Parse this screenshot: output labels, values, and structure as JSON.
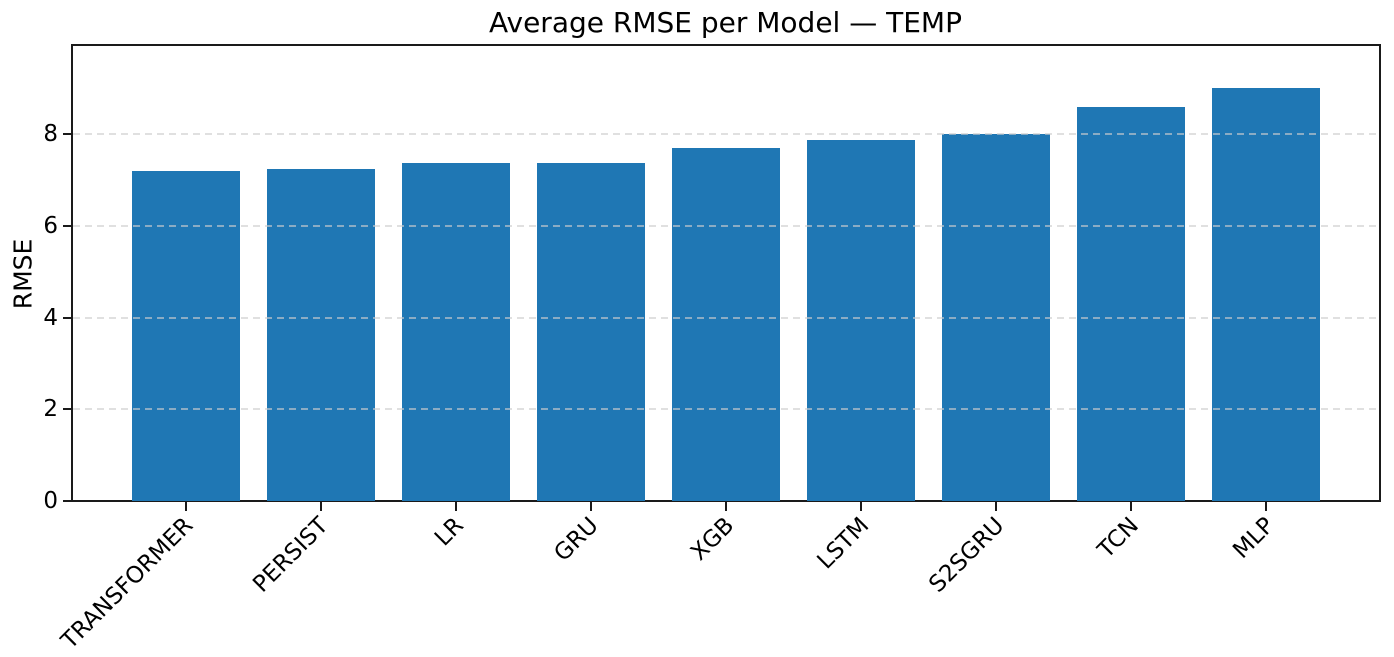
{
  "chart_data": {
    "type": "bar",
    "title": "Average RMSE per Model — TEMP",
    "categories": [
      "TRANSFORMER",
      "PERSIST",
      "LR",
      "GRU",
      "XGB",
      "LSTM",
      "S2SGRU",
      "TCN",
      "MLP"
    ],
    "values": [
      7.2,
      7.25,
      7.38,
      7.38,
      7.7,
      7.88,
      8.0,
      8.6,
      9.01
    ],
    "xlabel": "",
    "ylabel": "RMSE",
    "yticks": [
      0,
      2,
      4,
      6,
      8
    ],
    "ylim": [
      0,
      9.95
    ],
    "x_tick_rotation_deg": 45,
    "grid": "horizontal-dashed",
    "legend_position": "none",
    "colors": {
      "bar": "#1f77b4",
      "grid": "#cdcdcd",
      "spine": "#1a1a1a",
      "text": "#000000",
      "background": "#ffffff"
    }
  }
}
